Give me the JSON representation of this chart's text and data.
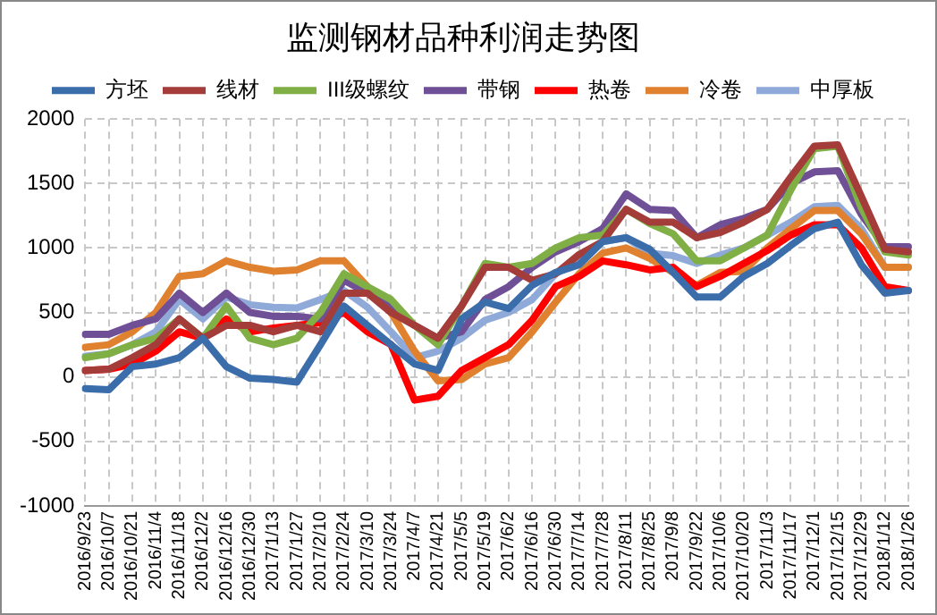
{
  "chart_data": {
    "type": "line",
    "title": "监测钢材品种利润走势图",
    "categories": [
      "2016/9/23",
      "2016/10/7",
      "2016/10/21",
      "2016/11/4",
      "2016/11/18",
      "2016/12/2",
      "2016/12/16",
      "2016/12/30",
      "2017/1/13",
      "2017/1/27",
      "2017/2/10",
      "2017/2/24",
      "2017/3/10",
      "2017/3/24",
      "2017/4/7",
      "2017/4/21",
      "2017/5/5",
      "2017/5/19",
      "2017/6/2",
      "2017/6/16",
      "2017/6/30",
      "2017/7/14",
      "2017/7/28",
      "2017/8/11",
      "2017/8/25",
      "2017/9/8",
      "2017/9/22",
      "2017/10/6",
      "2017/10/20",
      "2017/11/3",
      "2017/11/17",
      "2017/12/1",
      "2017/12/15",
      "2017/12/29",
      "2018/1/12",
      "2018/1/26"
    ],
    "series": [
      {
        "name": "方坯",
        "color": "#3b6dab",
        "values": [
          -90,
          -100,
          80,
          100,
          150,
          300,
          80,
          -10,
          -20,
          -40,
          250,
          550,
          400,
          250,
          100,
          50,
          450,
          580,
          530,
          710,
          810,
          870,
          1050,
          1080,
          990,
          810,
          620,
          620,
          780,
          880,
          1020,
          1150,
          1200,
          870,
          650,
          670
        ]
      },
      {
        "name": "线材",
        "color": "#a43d3a",
        "values": [
          50,
          60,
          150,
          250,
          450,
          300,
          400,
          400,
          350,
          400,
          350,
          650,
          650,
          500,
          400,
          300,
          550,
          850,
          850,
          750,
          800,
          950,
          1050,
          1300,
          1200,
          1200,
          1080,
          1120,
          1200,
          1300,
          1550,
          1790,
          1800,
          1400,
          990,
          970
        ]
      },
      {
        "name": "III级螺纹",
        "color": "#7faf45",
        "values": [
          150,
          180,
          250,
          300,
          450,
          300,
          550,
          300,
          250,
          300,
          500,
          800,
          700,
          600,
          400,
          250,
          550,
          880,
          850,
          880,
          1000,
          1080,
          1100,
          1300,
          1190,
          1110,
          900,
          900,
          1000,
          1100,
          1450,
          1770,
          1790,
          1310,
          970,
          945
        ]
      },
      {
        "name": "带钢",
        "color": "#6f4f96",
        "values": [
          330,
          330,
          400,
          450,
          650,
          500,
          650,
          500,
          470,
          470,
          450,
          750,
          650,
          550,
          400,
          300,
          350,
          600,
          700,
          850,
          970,
          1050,
          1150,
          1420,
          1300,
          1290,
          1080,
          1180,
          1230,
          1300,
          1500,
          1590,
          1600,
          1260,
          1010,
          1010
        ]
      },
      {
        "name": "热卷",
        "color": "#ff0000",
        "values": [
          50,
          60,
          100,
          200,
          350,
          300,
          450,
          350,
          380,
          400,
          420,
          500,
          350,
          250,
          -180,
          -150,
          50,
          150,
          250,
          440,
          700,
          780,
          900,
          870,
          830,
          850,
          700,
          780,
          880,
          980,
          1100,
          1180,
          1180,
          1000,
          700,
          670
        ]
      },
      {
        "name": "冷卷",
        "color": "#e0812f",
        "values": [
          230,
          250,
          350,
          500,
          780,
          800,
          900,
          850,
          820,
          830,
          900,
          900,
          700,
          500,
          200,
          -30,
          -20,
          100,
          150,
          350,
          580,
          800,
          960,
          1000,
          920,
          810,
          710,
          810,
          820,
          1000,
          1150,
          1290,
          1290,
          1110,
          850,
          850
        ]
      },
      {
        "name": "中厚板",
        "color": "#8faad8",
        "values": [
          160,
          180,
          250,
          350,
          600,
          450,
          620,
          560,
          540,
          535,
          600,
          670,
          540,
          350,
          150,
          200,
          300,
          440,
          500,
          600,
          800,
          900,
          1050,
          1080,
          960,
          940,
          880,
          945,
          1000,
          1100,
          1200,
          1320,
          1330,
          1150,
          850,
          850
        ]
      }
    ],
    "ylim": [
      -1000,
      2000
    ],
    "yticks": [
      -1000,
      -500,
      0,
      500,
      1000,
      1500,
      2000
    ],
    "grid": true,
    "legend": "top",
    "marker": "none",
    "line_style": "solid"
  }
}
